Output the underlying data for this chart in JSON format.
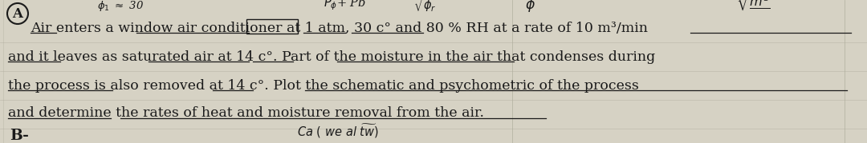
{
  "page_color": "#d6d2c4",
  "circle_A_text": "A",
  "main_text_line1": "Air enters a window air conditioner at 1 atm, 30 c° and 80 % RH at a rate of 10 m³/min",
  "main_text_line2": "and it leaves as saturated air at 14 c°. Part of the moisture in the air that condenses during",
  "main_text_line3": "the process is also removed at 14 c°. Plot the schematic and psychometric of the process",
  "main_text_line4": "and determine the rates of heat and moisture removal from the air.",
  "bottom_left": "B-",
  "font_size_main": 12.5,
  "font_size_small": 9.5,
  "text_color": "#1a1a1a"
}
